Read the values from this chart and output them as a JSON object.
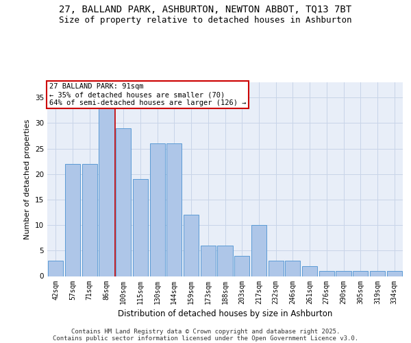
{
  "title_line1": "27, BALLAND PARK, ASHBURTON, NEWTON ABBOT, TQ13 7BT",
  "title_line2": "Size of property relative to detached houses in Ashburton",
  "xlabel": "Distribution of detached houses by size in Ashburton",
  "ylabel": "Number of detached properties",
  "categories": [
    "42sqm",
    "57sqm",
    "71sqm",
    "86sqm",
    "100sqm",
    "115sqm",
    "130sqm",
    "144sqm",
    "159sqm",
    "173sqm",
    "188sqm",
    "203sqm",
    "217sqm",
    "232sqm",
    "246sqm",
    "261sqm",
    "276sqm",
    "290sqm",
    "305sqm",
    "319sqm",
    "334sqm"
  ],
  "values": [
    3,
    22,
    22,
    33,
    29,
    19,
    26,
    26,
    12,
    6,
    6,
    4,
    10,
    3,
    3,
    2,
    1,
    1,
    1,
    1,
    1
  ],
  "bar_color": "#aec6e8",
  "bar_edge_color": "#5b9bd5",
  "grid_color": "#c8d4e8",
  "background_color": "#e8eef8",
  "annotation_text": "27 BALLAND PARK: 91sqm\n← 35% of detached houses are smaller (70)\n64% of semi-detached houses are larger (126) →",
  "annotation_box_color": "#ffffff",
  "annotation_box_edge": "#cc0000",
  "vline_color": "#cc0000",
  "ylim": [
    0,
    38
  ],
  "yticks": [
    0,
    5,
    10,
    15,
    20,
    25,
    30,
    35
  ],
  "footer_line1": "Contains HM Land Registry data © Crown copyright and database right 2025.",
  "footer_line2": "Contains public sector information licensed under the Open Government Licence v3.0.",
  "title_fontsize": 10,
  "subtitle_fontsize": 9,
  "tick_fontsize": 7,
  "ylabel_fontsize": 8,
  "xlabel_fontsize": 8.5,
  "annotation_fontsize": 7.5,
  "footer_fontsize": 6.5
}
